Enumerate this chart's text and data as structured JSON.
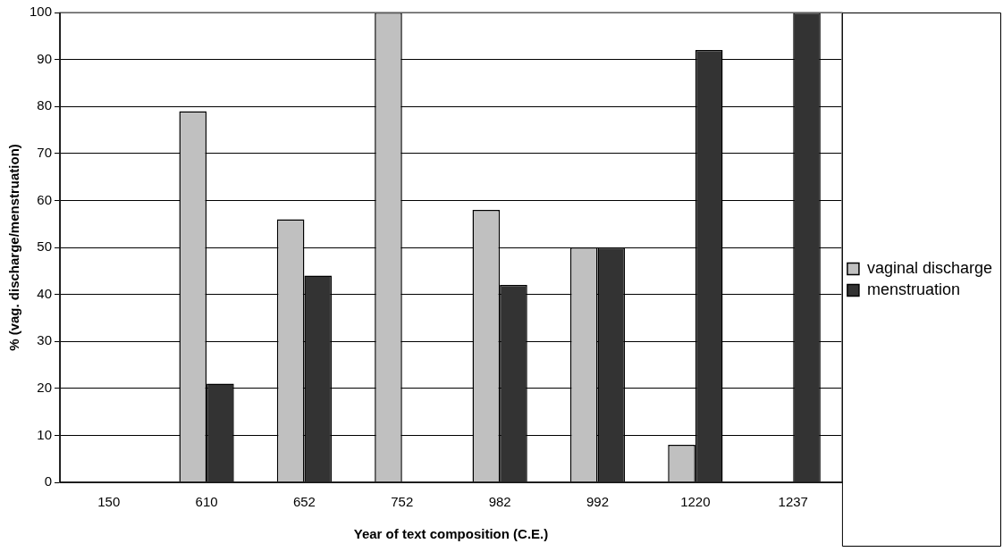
{
  "chart_data": {
    "type": "bar",
    "xlabel": "Year of text composition (C.E.)",
    "ylabel": "% (vag. discharge/menstruation)",
    "categories": [
      "150",
      "610",
      "652",
      "752",
      "982",
      "992",
      "1220",
      "1237"
    ],
    "series": [
      {
        "name": "vaginal discharge",
        "color": "#c0c0c0",
        "values": [
          0,
          79,
          56,
          100,
          58,
          50,
          8,
          0
        ]
      },
      {
        "name": "menstruation",
        "color": "#333333",
        "values": [
          0,
          21,
          44,
          0,
          42,
          50,
          92,
          100
        ]
      }
    ],
    "ylim": [
      0,
      100
    ],
    "yticks": [
      0,
      10,
      20,
      30,
      40,
      50,
      60,
      70,
      80,
      90,
      100
    ],
    "grid": "y",
    "legend": "right"
  }
}
